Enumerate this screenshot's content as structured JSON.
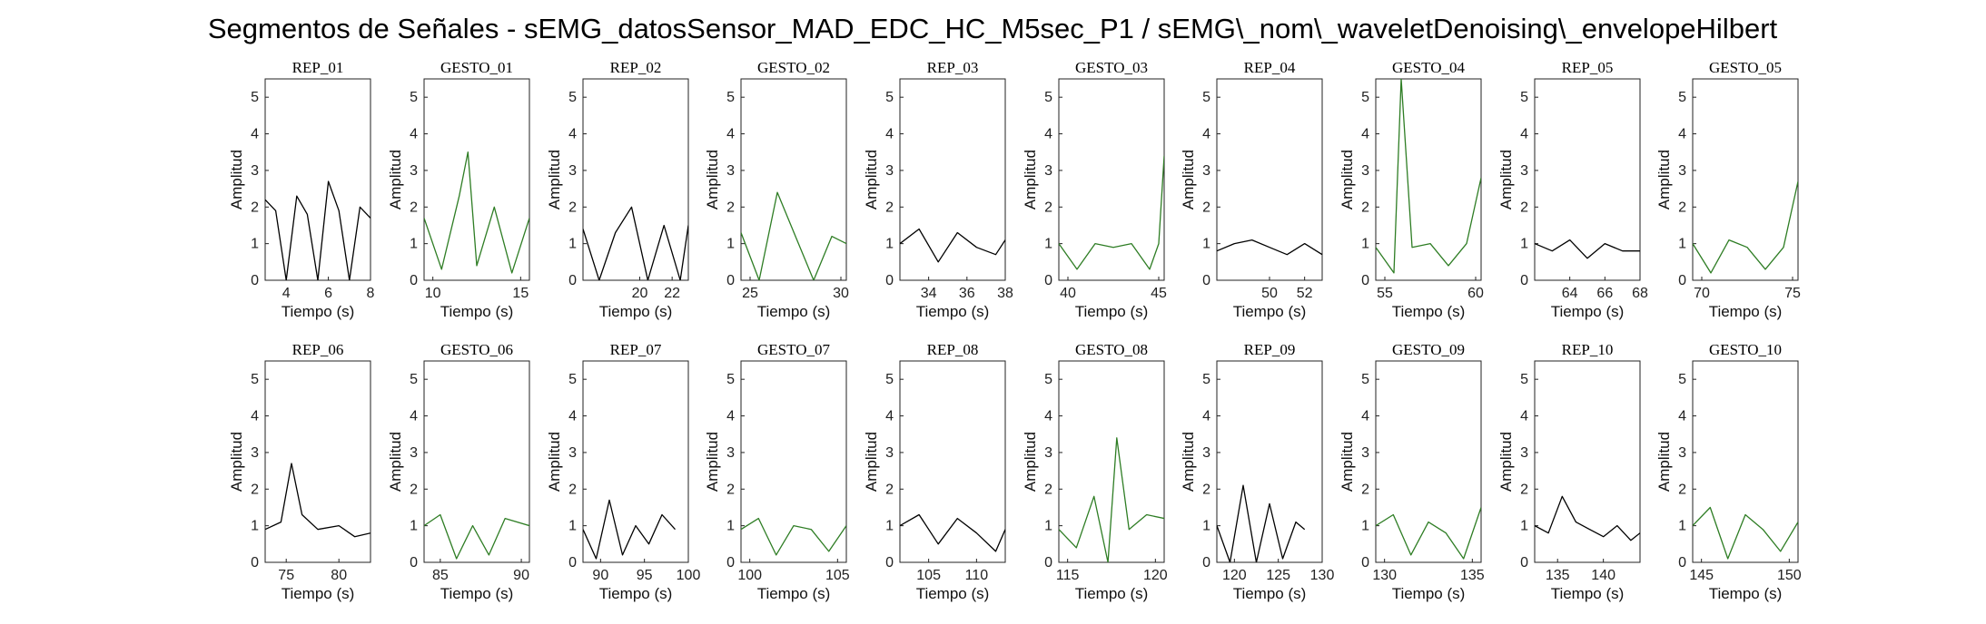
{
  "figure": {
    "title": "Segmentos de Señales - sEMG_datosSensor_MAD_EDC_HC_M5sec_P1 / sEMG\\_nom\\_waveletDenoising\\_envelopeHilbert"
  },
  "colors": {
    "rep": "#000000",
    "gesto": "#2e7d24",
    "axes": "#222222"
  },
  "chart_data": [
    {
      "type": "line",
      "title": "REP_01",
      "xlabel": "Tiempo (s)",
      "ylabel": "Amplitud",
      "xlim": [
        3,
        8
      ],
      "ylim": [
        0,
        5.5
      ],
      "xticks": [
        4,
        6,
        8
      ],
      "xtick_labels": [
        "4",
        "6",
        "8"
      ],
      "yticks": [
        0,
        1,
        2,
        3,
        4,
        5
      ],
      "ytick_labels": [
        "0",
        "1",
        "2",
        "3",
        "4",
        "5"
      ],
      "series": [
        {
          "color": "black",
          "x": [
            3.0,
            3.5,
            4.0,
            4.5,
            5.0,
            5.5,
            6.0,
            6.5,
            7.0,
            7.5,
            8.0
          ],
          "y": [
            2.2,
            1.9,
            0.0,
            2.3,
            1.8,
            0.0,
            2.7,
            1.9,
            0.0,
            2.0,
            1.7
          ]
        }
      ]
    },
    {
      "type": "line",
      "title": "GESTO_01",
      "xlabel": "Tiempo (s)",
      "ylabel": "Amplitud",
      "xlim": [
        9.5,
        15.5
      ],
      "ylim": [
        0,
        5.5
      ],
      "xticks": [
        10,
        15
      ],
      "xtick_labels": [
        "10",
        "15"
      ],
      "yticks": [
        0,
        1,
        2,
        3,
        4,
        5
      ],
      "ytick_labels": [
        "0",
        "1",
        "2",
        "3",
        "4",
        "5"
      ],
      "series": [
        {
          "color": "green",
          "x": [
            9.5,
            10.5,
            11.5,
            12.0,
            12.5,
            13.5,
            14.5,
            15.5
          ],
          "y": [
            1.7,
            0.3,
            2.3,
            3.5,
            0.4,
            2.0,
            0.2,
            1.7
          ]
        }
      ]
    },
    {
      "type": "line",
      "title": "REP_02",
      "xlabel": "Tiempo (s)",
      "ylabel": "Amplitud",
      "xlim": [
        16.5,
        23
      ],
      "ylim": [
        0,
        5.5
      ],
      "xticks": [
        20,
        22
      ],
      "xtick_labels": [
        "20",
        "22"
      ],
      "yticks": [
        0,
        1,
        2,
        3,
        4,
        5
      ],
      "ytick_labels": [
        "0",
        "1",
        "2",
        "3",
        "4",
        "5"
      ],
      "series": [
        {
          "color": "black",
          "x": [
            16.5,
            17.5,
            18.5,
            19.5,
            20.5,
            21.5,
            22.5,
            23.0
          ],
          "y": [
            1.4,
            0.0,
            1.3,
            2.0,
            0.0,
            1.5,
            0.0,
            1.5
          ]
        }
      ]
    },
    {
      "type": "line",
      "title": "GESTO_02",
      "xlabel": "Tiempo (s)",
      "ylabel": "Amplitud",
      "xlim": [
        24.5,
        30.3
      ],
      "ylim": [
        0,
        5.5
      ],
      "xticks": [
        25,
        30
      ],
      "xtick_labels": [
        "25",
        "30"
      ],
      "yticks": [
        0,
        1,
        2,
        3,
        4,
        5
      ],
      "ytick_labels": [
        "0",
        "1",
        "2",
        "3",
        "4",
        "5"
      ],
      "series": [
        {
          "color": "green",
          "x": [
            24.5,
            25.5,
            26.5,
            27.5,
            28.5,
            29.5,
            30.3
          ],
          "y": [
            1.3,
            0.0,
            2.4,
            1.2,
            0.0,
            1.2,
            1.0
          ]
        }
      ]
    },
    {
      "type": "line",
      "title": "REP_03",
      "xlabel": "Tiempo (s)",
      "ylabel": "Amplitud",
      "xlim": [
        32.5,
        38
      ],
      "ylim": [
        0,
        5.5
      ],
      "xticks": [
        34,
        36,
        38
      ],
      "xtick_labels": [
        "34",
        "36",
        "38"
      ],
      "yticks": [
        0,
        1,
        2,
        3,
        4,
        5
      ],
      "ytick_labels": [
        "0",
        "1",
        "2",
        "3",
        "4",
        "5"
      ],
      "series": [
        {
          "color": "black",
          "x": [
            32.5,
            33.5,
            34.5,
            35.5,
            36.5,
            37.5,
            38.0
          ],
          "y": [
            1.0,
            1.4,
            0.5,
            1.3,
            0.9,
            0.7,
            1.1
          ]
        }
      ]
    },
    {
      "type": "line",
      "title": "GESTO_03",
      "xlabel": "Tiempo (s)",
      "ylabel": "Amplitud",
      "xlim": [
        39.5,
        45.3
      ],
      "ylim": [
        0,
        5.5
      ],
      "xticks": [
        40,
        45
      ],
      "xtick_labels": [
        "40",
        "45"
      ],
      "yticks": [
        0,
        1,
        2,
        3,
        4,
        5
      ],
      "ytick_labels": [
        "0",
        "1",
        "2",
        "3",
        "4",
        "5"
      ],
      "series": [
        {
          "color": "green",
          "x": [
            39.5,
            40.5,
            41.5,
            42.5,
            43.5,
            44.5,
            45.0,
            45.3
          ],
          "y": [
            1.0,
            0.3,
            1.0,
            0.9,
            1.0,
            0.3,
            1.0,
            3.4
          ]
        }
      ]
    },
    {
      "type": "line",
      "title": "REP_04",
      "xlabel": "Tiempo (s)",
      "ylabel": "Amplitud",
      "xlim": [
        47,
        53
      ],
      "ylim": [
        0,
        5.5
      ],
      "xticks": [
        50,
        52
      ],
      "xtick_labels": [
        "50",
        "52"
      ],
      "yticks": [
        0,
        1,
        2,
        3,
        4,
        5
      ],
      "ytick_labels": [
        "0",
        "1",
        "2",
        "3",
        "4",
        "5"
      ],
      "series": [
        {
          "color": "black",
          "x": [
            47.0,
            48.0,
            49.0,
            50.0,
            51.0,
            52.0,
            53.0
          ],
          "y": [
            0.8,
            1.0,
            1.1,
            0.9,
            0.7,
            1.0,
            0.7
          ]
        }
      ]
    },
    {
      "type": "line",
      "title": "GESTO_04",
      "xlabel": "Tiempo (s)",
      "ylabel": "Amplitud",
      "xlim": [
        54.5,
        60.3
      ],
      "ylim": [
        0,
        5.5
      ],
      "xticks": [
        55,
        60
      ],
      "xtick_labels": [
        "55",
        "60"
      ],
      "yticks": [
        0,
        1,
        2,
        3,
        4,
        5
      ],
      "ytick_labels": [
        "0",
        "1",
        "2",
        "3",
        "4",
        "5"
      ],
      "series": [
        {
          "color": "green",
          "x": [
            54.5,
            55.5,
            55.9,
            56.5,
            57.5,
            58.5,
            59.5,
            60.3
          ],
          "y": [
            0.9,
            0.2,
            5.5,
            0.9,
            1.0,
            0.4,
            1.0,
            2.8
          ]
        }
      ]
    },
    {
      "type": "line",
      "title": "REP_05",
      "xlabel": "Tiempo (s)",
      "ylabel": "Amplitud",
      "xlim": [
        62,
        68
      ],
      "ylim": [
        0,
        5.5
      ],
      "xticks": [
        64,
        66,
        68
      ],
      "xtick_labels": [
        "64",
        "66",
        "68"
      ],
      "yticks": [
        0,
        1,
        2,
        3,
        4,
        5
      ],
      "ytick_labels": [
        "0",
        "1",
        "2",
        "3",
        "4",
        "5"
      ],
      "series": [
        {
          "color": "black",
          "x": [
            62.0,
            63.0,
            64.0,
            65.0,
            66.0,
            67.0,
            68.0
          ],
          "y": [
            1.0,
            0.8,
            1.1,
            0.6,
            1.0,
            0.8,
            0.8
          ]
        }
      ]
    },
    {
      "type": "line",
      "title": "GESTO_05",
      "xlabel": "Tiempo (s)",
      "ylabel": "Amplitud",
      "xlim": [
        69.5,
        75.3
      ],
      "ylim": [
        0,
        5.5
      ],
      "xticks": [
        70,
        75
      ],
      "xtick_labels": [
        "70",
        "75"
      ],
      "yticks": [
        0,
        1,
        2,
        3,
        4,
        5
      ],
      "ytick_labels": [
        "0",
        "1",
        "2",
        "3",
        "4",
        "5"
      ],
      "series": [
        {
          "color": "green",
          "x": [
            69.5,
            70.5,
            71.5,
            72.5,
            73.5,
            74.5,
            75.3
          ],
          "y": [
            1.0,
            0.2,
            1.1,
            0.9,
            0.3,
            0.9,
            2.7
          ]
        }
      ]
    },
    {
      "type": "line",
      "title": "REP_06",
      "xlabel": "Tiempo (s)",
      "ylabel": "Amplitud",
      "xlim": [
        73,
        83
      ],
      "ylim": [
        0,
        5.5
      ],
      "xticks": [
        75,
        80
      ],
      "xtick_labels": [
        "75",
        "80"
      ],
      "yticks": [
        0,
        1,
        2,
        3,
        4,
        5
      ],
      "ytick_labels": [
        "0",
        "1",
        "2",
        "3",
        "4",
        "5"
      ],
      "series": [
        {
          "color": "black",
          "x": [
            73.0,
            74.5,
            75.5,
            76.5,
            78.0,
            80.0,
            81.5,
            83.0
          ],
          "y": [
            0.9,
            1.1,
            2.7,
            1.3,
            0.9,
            1.0,
            0.7,
            0.8
          ]
        }
      ]
    },
    {
      "type": "line",
      "title": "GESTO_06",
      "xlabel": "Tiempo (s)",
      "ylabel": "Amplitud",
      "xlim": [
        84,
        90.5
      ],
      "ylim": [
        0,
        5.5
      ],
      "xticks": [
        85,
        90
      ],
      "xtick_labels": [
        "85",
        "90"
      ],
      "yticks": [
        0,
        1,
        2,
        3,
        4,
        5
      ],
      "ytick_labels": [
        "0",
        "1",
        "2",
        "3",
        "4",
        "5"
      ],
      "series": [
        {
          "color": "green",
          "x": [
            84.0,
            85.0,
            86.0,
            87.0,
            88.0,
            89.0,
            90.5
          ],
          "y": [
            1.0,
            1.3,
            0.1,
            1.0,
            0.2,
            1.2,
            1.0
          ]
        }
      ]
    },
    {
      "type": "line",
      "title": "REP_07",
      "xlabel": "Tiempo (s)",
      "ylabel": "Amplitud",
      "xlim": [
        88,
        100
      ],
      "ylim": [
        0,
        5.5
      ],
      "xticks": [
        90,
        95,
        100
      ],
      "xtick_labels": [
        "90",
        "95",
        "100"
      ],
      "yticks": [
        0,
        1,
        2,
        3,
        4,
        5
      ],
      "ytick_labels": [
        "0",
        "1",
        "2",
        "3",
        "4",
        "5"
      ],
      "series": [
        {
          "color": "black",
          "x": [
            88.0,
            89.5,
            91.0,
            92.5,
            94.0,
            95.5,
            97.0,
            98.5
          ],
          "y": [
            0.9,
            0.1,
            1.7,
            0.2,
            1.0,
            0.5,
            1.3,
            0.9
          ]
        }
      ]
    },
    {
      "type": "line",
      "title": "GESTO_07",
      "xlabel": "Tiempo (s)",
      "ylabel": "Amplitud",
      "xlim": [
        99.5,
        105.5
      ],
      "ylim": [
        0,
        5.5
      ],
      "xticks": [
        100,
        105
      ],
      "xtick_labels": [
        "100",
        "105"
      ],
      "yticks": [
        0,
        1,
        2,
        3,
        4,
        5
      ],
      "ytick_labels": [
        "0",
        "1",
        "2",
        "3",
        "4",
        "5"
      ],
      "series": [
        {
          "color": "green",
          "x": [
            99.5,
            100.5,
            101.5,
            102.5,
            103.5,
            104.5,
            105.5
          ],
          "y": [
            0.9,
            1.2,
            0.2,
            1.0,
            0.9,
            0.3,
            1.0
          ]
        }
      ]
    },
    {
      "type": "line",
      "title": "REP_08",
      "xlabel": "Tiempo (s)",
      "ylabel": "Amplitud",
      "xlim": [
        102,
        113
      ],
      "ylim": [
        0,
        5.5
      ],
      "xticks": [
        105,
        110
      ],
      "xtick_labels": [
        "105",
        "110"
      ],
      "yticks": [
        0,
        1,
        2,
        3,
        4,
        5
      ],
      "ytick_labels": [
        "0",
        "1",
        "2",
        "3",
        "4",
        "5"
      ],
      "series": [
        {
          "color": "black",
          "x": [
            102.0,
            104.0,
            106.0,
            108.0,
            110.0,
            112.0,
            113.0
          ],
          "y": [
            1.0,
            1.3,
            0.5,
            1.2,
            0.8,
            0.3,
            0.9
          ]
        }
      ]
    },
    {
      "type": "line",
      "title": "GESTO_08",
      "xlabel": "Tiempo (s)",
      "ylabel": "Amplitud",
      "xlim": [
        114.5,
        120.5
      ],
      "ylim": [
        0,
        5.5
      ],
      "xticks": [
        115,
        120
      ],
      "xtick_labels": [
        "115",
        "120"
      ],
      "yticks": [
        0,
        1,
        2,
        3,
        4,
        5
      ],
      "ytick_labels": [
        "0",
        "1",
        "2",
        "3",
        "4",
        "5"
      ],
      "series": [
        {
          "color": "green",
          "x": [
            114.5,
            115.5,
            116.5,
            117.3,
            117.8,
            118.5,
            119.5,
            120.5
          ],
          "y": [
            0.9,
            0.4,
            1.8,
            0.0,
            3.4,
            0.9,
            1.3,
            1.2
          ]
        }
      ]
    },
    {
      "type": "line",
      "title": "REP_09",
      "xlabel": "Tiempo (s)",
      "ylabel": "Amplitud",
      "xlim": [
        118,
        130
      ],
      "ylim": [
        0,
        5.5
      ],
      "xticks": [
        120,
        125,
        130
      ],
      "xtick_labels": [
        "120",
        "125",
        "130"
      ],
      "yticks": [
        0,
        1,
        2,
        3,
        4,
        5
      ],
      "ytick_labels": [
        "0",
        "1",
        "2",
        "3",
        "4",
        "5"
      ],
      "series": [
        {
          "color": "black",
          "x": [
            118.0,
            119.5,
            121.0,
            122.5,
            124.0,
            125.5,
            127.0,
            128.0
          ],
          "y": [
            1.0,
            0.0,
            2.1,
            0.0,
            1.6,
            0.1,
            1.1,
            0.9
          ]
        }
      ]
    },
    {
      "type": "line",
      "title": "GESTO_09",
      "xlabel": "Tiempo (s)",
      "ylabel": "Amplitud",
      "xlim": [
        129.5,
        135.5
      ],
      "ylim": [
        0,
        5.5
      ],
      "xticks": [
        130,
        135
      ],
      "xtick_labels": [
        "130",
        "135"
      ],
      "yticks": [
        0,
        1,
        2,
        3,
        4,
        5
      ],
      "ytick_labels": [
        "0",
        "1",
        "2",
        "3",
        "4",
        "5"
      ],
      "series": [
        {
          "color": "green",
          "x": [
            129.5,
            130.5,
            131.5,
            132.5,
            133.5,
            134.5,
            135.5
          ],
          "y": [
            1.0,
            1.3,
            0.2,
            1.1,
            0.8,
            0.1,
            1.5
          ]
        }
      ]
    },
    {
      "type": "line",
      "title": "REP_10",
      "xlabel": "Tiempo (s)",
      "ylabel": "Amplitud",
      "xlim": [
        132.5,
        144
      ],
      "ylim": [
        0,
        5.5
      ],
      "xticks": [
        135,
        140
      ],
      "xtick_labels": [
        "135",
        "140"
      ],
      "yticks": [
        0,
        1,
        2,
        3,
        4,
        5
      ],
      "ytick_labels": [
        "0",
        "1",
        "2",
        "3",
        "4",
        "5"
      ],
      "series": [
        {
          "color": "black",
          "x": [
            132.5,
            134.0,
            135.5,
            137.0,
            138.5,
            140.0,
            141.5,
            143.0,
            144.0
          ],
          "y": [
            1.0,
            0.8,
            1.8,
            1.1,
            0.9,
            0.7,
            1.0,
            0.6,
            0.8
          ]
        }
      ]
    },
    {
      "type": "line",
      "title": "GESTO_10",
      "xlabel": "Tiempo (s)",
      "ylabel": "Amplitud",
      "xlim": [
        144.5,
        150.5
      ],
      "ylim": [
        0,
        5.5
      ],
      "xticks": [
        145,
        150
      ],
      "xtick_labels": [
        "145",
        "150"
      ],
      "yticks": [
        0,
        1,
        2,
        3,
        4,
        5
      ],
      "ytick_labels": [
        "0",
        "1",
        "2",
        "3",
        "4",
        "5"
      ],
      "series": [
        {
          "color": "green",
          "x": [
            144.5,
            145.5,
            146.5,
            147.5,
            148.5,
            149.5,
            150.5
          ],
          "y": [
            1.0,
            1.5,
            0.1,
            1.3,
            0.9,
            0.3,
            1.1
          ]
        }
      ]
    }
  ]
}
